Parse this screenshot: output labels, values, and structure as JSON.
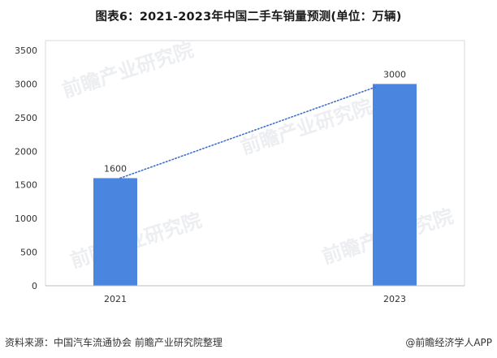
{
  "title": "图表6：2021-2023年中国二手车销量预测(单位：万辆)",
  "footer": {
    "source": "资料来源：中国汽车流通协会 前瞻产业研究院整理",
    "brand": "@前瞻经济学人APP"
  },
  "watermark": {
    "text": "前瞻产业研究院"
  },
  "colors": {
    "bar": "#4a86e0",
    "trendline": "#3f6fd0",
    "axis": "#b9bcc2",
    "text": "#333333"
  },
  "chart_data": {
    "type": "bar",
    "categories": [
      "2021",
      "2023"
    ],
    "values": [
      1600,
      3000
    ],
    "data_labels": [
      "1600",
      "3000"
    ],
    "ylim": [
      0,
      3500
    ],
    "yticks": [
      0,
      500,
      1000,
      1500,
      2000,
      2500,
      3000,
      3500
    ],
    "trendline": {
      "style": "dotted",
      "from": "2021",
      "to": "2023"
    },
    "grid": false,
    "legend": "none"
  }
}
